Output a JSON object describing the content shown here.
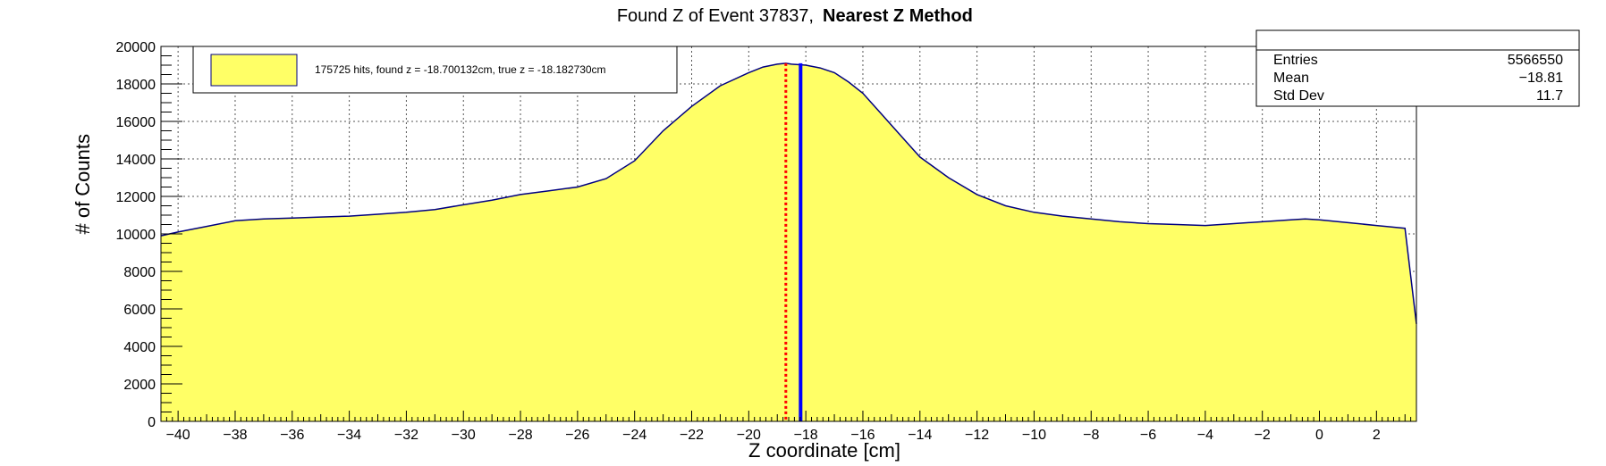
{
  "chart_data": {
    "type": "area",
    "title": "Found Z of Event 37837,",
    "title_method": "Nearest Z Method",
    "xlabel": "Z coordinate [cm]",
    "ylabel": "# of Counts",
    "xlim": [
      -40.6,
      3.4
    ],
    "ylim": [
      0,
      20000
    ],
    "x_ticks": [
      -40,
      -38,
      -36,
      -34,
      -32,
      -30,
      -28,
      -26,
      -24,
      -22,
      -20,
      -18,
      -16,
      -14,
      -12,
      -10,
      -8,
      -6,
      -4,
      -2,
      0,
      2
    ],
    "y_ticks": [
      0,
      2000,
      4000,
      6000,
      8000,
      10000,
      12000,
      14000,
      16000,
      18000,
      20000
    ],
    "grid": true,
    "fill_color": "#ffff66",
    "line_color": "#000080",
    "series": [
      {
        "x": [
          -40.6,
          -40,
          -39,
          -38,
          -37,
          -36,
          -35,
          -34,
          -33,
          -32,
          -31,
          -30,
          -29,
          -28,
          -27,
          -26,
          -25,
          -24,
          -23,
          -22,
          -21,
          -20,
          -19.5,
          -19,
          -18.7,
          -18.5,
          -18,
          -17.5,
          -17,
          -16.5,
          -16,
          -15,
          -14,
          -13,
          -12,
          -11,
          -10,
          -9,
          -8,
          -7,
          -6,
          -5,
          -4,
          -3,
          -2,
          -1,
          -0.5,
          0,
          1,
          2,
          3,
          3.4
        ],
        "values": [
          9900,
          10100,
          10400,
          10700,
          10800,
          10850,
          10900,
          10950,
          11050,
          11150,
          11300,
          11550,
          11800,
          12100,
          12300,
          12500,
          12950,
          13900,
          15500,
          16800,
          17900,
          18600,
          18900,
          19050,
          19100,
          19050,
          19000,
          18850,
          18600,
          18100,
          17500,
          15800,
          14100,
          13000,
          12100,
          11500,
          11150,
          10950,
          10800,
          10650,
          10550,
          10500,
          10450,
          10550,
          10650,
          10750,
          10800,
          10750,
          10600,
          10450,
          10300,
          5200
        ]
      }
    ],
    "markers": [
      {
        "label": "found z",
        "x": -18.700132,
        "color": "#ff0000",
        "style": "dotted"
      },
      {
        "label": "true z",
        "x": -18.18273,
        "color": "#0000ff",
        "style": "solid"
      }
    ],
    "legend": {
      "position": "top-left",
      "text": "175725 hits, found z = -18.700132cm, true z = -18.182730cm",
      "swatch_color": "#ffff66"
    },
    "stats": {
      "position": "top-right",
      "rows": [
        {
          "label": "Entries",
          "value": "5566550"
        },
        {
          "label": "Mean",
          "value": "−18.81"
        },
        {
          "label": "Std Dev",
          "value": "11.7"
        }
      ]
    }
  }
}
